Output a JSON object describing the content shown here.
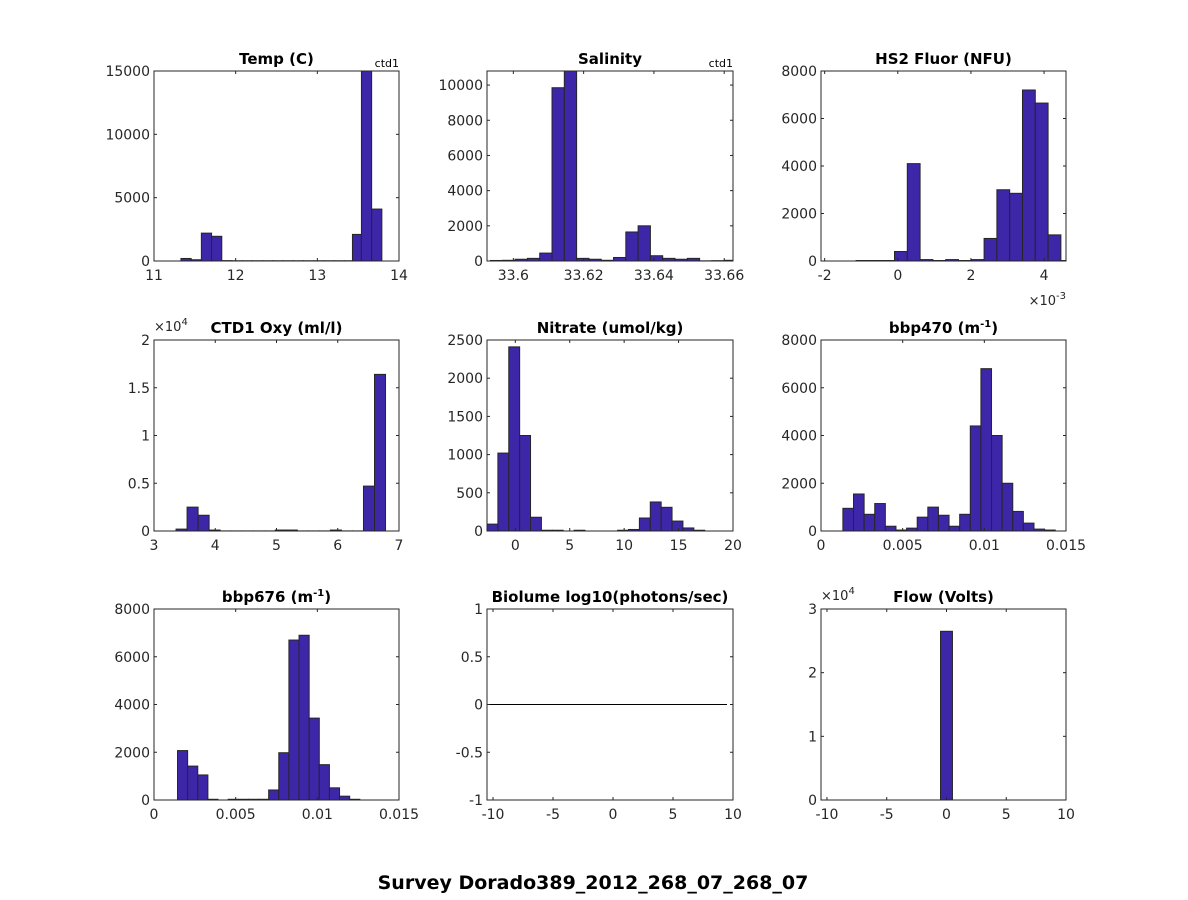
{
  "figure_title": "Survey Dorado389_2012_268_07_268_07",
  "colors": {
    "bar_fill": "#3d26a8",
    "bar_edge": "#262626",
    "axis": "#262626",
    "line": "#000000"
  },
  "chart_data": [
    {
      "type": "bar",
      "title": "Temp (C)",
      "corner_label": "ctd1",
      "xlim": [
        11,
        14
      ],
      "ylim": [
        0,
        15000
      ],
      "xticks": [
        11,
        12,
        13,
        14
      ],
      "xtick_labels": [
        "11",
        "12",
        "13",
        "14"
      ],
      "yticks": [
        0,
        5000,
        10000,
        15000
      ],
      "ytick_labels": [
        "0",
        "5000",
        "10000",
        "15000"
      ],
      "x_exponent": "",
      "y_exponent": "",
      "bin_edges": [
        11.33,
        11.455,
        11.58,
        11.705,
        11.83,
        11.955,
        12.08,
        12.205,
        12.33,
        12.455,
        12.58,
        12.705,
        12.83,
        12.955,
        13.08,
        13.205,
        13.33,
        13.43,
        13.54,
        13.665,
        13.79
      ],
      "counts": [
        200,
        100,
        2200,
        1950,
        30,
        20,
        20,
        20,
        20,
        20,
        20,
        20,
        20,
        20,
        20,
        20,
        20,
        2100,
        15200,
        4100
      ]
    },
    {
      "type": "bar",
      "title": "Salinity",
      "corner_label": "ctd1",
      "xlim": [
        33.5925,
        33.6625
      ],
      "ylim": [
        0,
        10800
      ],
      "xticks": [
        33.6,
        33.62,
        33.64,
        33.66
      ],
      "xtick_labels": [
        "33.6",
        "33.62",
        "33.64",
        "33.66"
      ],
      "yticks": [
        0,
        2000,
        4000,
        6000,
        8000,
        10000
      ],
      "ytick_labels": [
        "0",
        "2000",
        "4000",
        "6000",
        "8000",
        "10000"
      ],
      "x_exponent": "",
      "y_exponent": "",
      "bin_edges": [
        33.5935,
        33.597,
        33.6005,
        33.604,
        33.6075,
        33.611,
        33.6145,
        33.618,
        33.6215,
        33.625,
        33.6285,
        33.632,
        33.6355,
        33.639,
        33.6425,
        33.646,
        33.6495,
        33.653,
        33.6565,
        33.66,
        33.6635
      ],
      "counts": [
        30,
        40,
        100,
        150,
        450,
        9850,
        10800,
        150,
        100,
        40,
        200,
        1650,
        2000,
        300,
        150,
        100,
        150,
        10,
        20,
        40
      ]
    },
    {
      "type": "bar",
      "title": "HS2 Fluor (NFU)",
      "corner_label": "",
      "xlim": [
        -0.0021,
        0.0046
      ],
      "ylim": [
        0,
        8000
      ],
      "xticks": [
        -0.002,
        0,
        0.002,
        0.004
      ],
      "xtick_labels": [
        "-2",
        "0",
        "2",
        "4"
      ],
      "yticks": [
        0,
        2000,
        4000,
        6000,
        8000
      ],
      "ytick_labels": [
        "0",
        "2000",
        "4000",
        "6000",
        "8000"
      ],
      "x_exponent": "×10-3",
      "y_exponent": "",
      "bin_edges": [
        -0.00114,
        -0.00079,
        -0.00044,
        -9e-05,
        0.00026,
        0.00061,
        0.00096,
        0.00131,
        0.00166,
        0.00201,
        0.00236,
        0.00271,
        0.00306,
        0.00341,
        0.00376,
        0.00411,
        0.00446,
        0.0048
      ],
      "counts": [
        20,
        20,
        20,
        400,
        4100,
        60,
        20,
        60,
        20,
        60,
        950,
        3000,
        2850,
        7200,
        6650,
        1100,
        20
      ]
    },
    {
      "type": "bar",
      "title": "CTD1 Oxy (ml/l)",
      "corner_label": "",
      "xlim": [
        3,
        7
      ],
      "ylim": [
        0,
        20000
      ],
      "xticks": [
        3,
        4,
        5,
        6,
        7
      ],
      "xtick_labels": [
        "3",
        "4",
        "5",
        "6",
        "7"
      ],
      "yticks": [
        0,
        5000,
        10000,
        15000,
        20000
      ],
      "ytick_labels": [
        "0",
        "0.5",
        "1",
        "1.5",
        "2"
      ],
      "x_exponent": "",
      "y_exponent": "×104",
      "bin_edges": [
        3.36,
        3.54,
        3.72,
        3.9,
        4.08,
        4.26,
        4.44,
        4.62,
        4.8,
        4.98,
        5.16,
        5.34,
        5.52,
        5.7,
        5.88,
        6.06,
        6.24,
        6.42,
        6.6,
        6.78
      ],
      "counts": [
        200,
        2500,
        1650,
        100,
        10,
        10,
        10,
        10,
        10,
        100,
        100,
        10,
        10,
        10,
        100,
        10,
        10,
        4700,
        16400
      ]
    },
    {
      "type": "bar",
      "title": "Nitrate (umol/kg)",
      "corner_label": "",
      "xlim": [
        -2.6,
        20
      ],
      "ylim": [
        0,
        2500
      ],
      "xticks": [
        0,
        5,
        10,
        15,
        20
      ],
      "xtick_labels": [
        "0",
        "5",
        "10",
        "15",
        "20"
      ],
      "yticks": [
        0,
        500,
        1000,
        1500,
        2000,
        2500
      ],
      "ytick_labels": [
        "0",
        "500",
        "1000",
        "1500",
        "2000",
        "2500"
      ],
      "x_exponent": "",
      "y_exponent": "",
      "bin_edges": [
        -2.6,
        -1.6,
        -0.6,
        0.4,
        1.4,
        2.4,
        3.4,
        4.4,
        5.4,
        6.4,
        7.4,
        8.4,
        9.4,
        10.4,
        11.4,
        12.4,
        13.4,
        14.4,
        15.4,
        16.4,
        17.4
      ],
      "counts": [
        90,
        1020,
        2410,
        1250,
        180,
        10,
        10,
        0,
        10,
        0,
        0,
        0,
        10,
        20,
        170,
        380,
        310,
        130,
        40,
        10
      ]
    },
    {
      "type": "bar",
      "title": "bbp470 (m-1)",
      "corner_label": "",
      "xlim": [
        0,
        0.015
      ],
      "ylim": [
        0,
        8000
      ],
      "xticks": [
        0,
        0.005,
        0.01,
        0.015
      ],
      "xtick_labels": [
        "0",
        "0.005",
        "0.01",
        "0.015"
      ],
      "yticks": [
        0,
        2000,
        4000,
        6000,
        8000
      ],
      "ytick_labels": [
        "0",
        "2000",
        "4000",
        "6000",
        "8000"
      ],
      "x_exponent": "",
      "y_exponent": "",
      "bin_edges": [
        0.00134,
        0.00199,
        0.00264,
        0.00329,
        0.00394,
        0.00459,
        0.00524,
        0.00589,
        0.00654,
        0.00719,
        0.00784,
        0.00849,
        0.00914,
        0.00979,
        0.01044,
        0.01109,
        0.01174,
        0.01239,
        0.01304,
        0.01369,
        0.01434
      ],
      "counts": [
        950,
        1550,
        700,
        1150,
        200,
        40,
        120,
        580,
        1000,
        660,
        200,
        700,
        4400,
        6800,
        4000,
        2000,
        820,
        330,
        80,
        40
      ]
    },
    {
      "type": "bar",
      "title": "bbp676 (m-1)",
      "corner_label": "",
      "xlim": [
        0,
        0.015
      ],
      "ylim": [
        0,
        8000
      ],
      "xticks": [
        0,
        0.005,
        0.01,
        0.015
      ],
      "xtick_labels": [
        "0",
        "0.005",
        "0.01",
        "0.015"
      ],
      "yticks": [
        0,
        2000,
        4000,
        6000,
        8000
      ],
      "ytick_labels": [
        "0",
        "2000",
        "4000",
        "6000",
        "8000"
      ],
      "x_exponent": "",
      "y_exponent": "",
      "bin_edges": [
        0.00144,
        0.00206,
        0.00268,
        0.0033,
        0.00392,
        0.00454,
        0.00516,
        0.00578,
        0.0064,
        0.00702,
        0.00764,
        0.00826,
        0.00888,
        0.0095,
        0.01012,
        0.01074,
        0.01136,
        0.01198,
        0.0126
      ],
      "counts": [
        2070,
        1420,
        1050,
        30,
        0,
        30,
        30,
        30,
        30,
        420,
        1980,
        6700,
        6900,
        3430,
        1480,
        510,
        160,
        30
      ]
    },
    {
      "type": "line",
      "title": "Biolume log10(photons/sec)",
      "corner_label": "",
      "xlim": [
        -10.5,
        10
      ],
      "ylim": [
        -1,
        1
      ],
      "xticks": [
        -10,
        -5,
        0,
        5,
        10
      ],
      "xtick_labels": [
        "-10",
        "-5",
        "0",
        "5",
        "10"
      ],
      "yticks": [
        -1,
        -0.5,
        0,
        0.5,
        1
      ],
      "ytick_labels": [
        "-1",
        "-0.5",
        "0",
        "0.5",
        "1"
      ],
      "x_exponent": "",
      "y_exponent": "",
      "line": {
        "x": [
          -10.5,
          9.5
        ],
        "y": [
          0,
          0
        ]
      }
    },
    {
      "type": "bar",
      "title": "Flow (Volts)",
      "corner_label": "",
      "xlim": [
        -10.5,
        10
      ],
      "ylim": [
        0,
        30000
      ],
      "xticks": [
        -10,
        -5,
        0,
        5,
        10
      ],
      "xtick_labels": [
        "-10",
        "-5",
        "0",
        "5",
        "10"
      ],
      "yticks": [
        0,
        10000,
        20000,
        30000
      ],
      "ytick_labels": [
        "0",
        "1",
        "2",
        "3"
      ],
      "x_exponent": "",
      "y_exponent": "×104",
      "bin_edges": [
        -0.5,
        0.5
      ],
      "counts": [
        26500
      ]
    }
  ]
}
